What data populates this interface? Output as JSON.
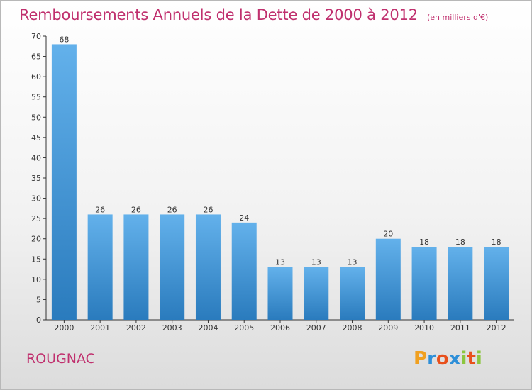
{
  "header": {
    "title": "Remboursements Annuels de la Dette de 2000 à 2012",
    "subtitle": "(en milliers d'€)"
  },
  "footer": {
    "place": "ROUGNAC",
    "logo": "Proxiti"
  },
  "colors": {
    "bar_top": "#63b1eb",
    "bar_bottom": "#2a7bbd",
    "accent": "#c0306e"
  },
  "chart_data": {
    "type": "bar",
    "title": "Remboursements Annuels de la Dette de 2000 à 2012",
    "subtitle": "(en milliers d'€)",
    "categories": [
      "2000",
      "2001",
      "2002",
      "2003",
      "2004",
      "2005",
      "2006",
      "2007",
      "2008",
      "2009",
      "2010",
      "2011",
      "2012"
    ],
    "values": [
      68,
      26,
      26,
      26,
      26,
      24,
      13,
      13,
      13,
      20,
      18,
      18,
      18
    ],
    "value_labels": [
      "68",
      "26",
      "26",
      "26",
      "26",
      "24",
      "13",
      "13",
      "13",
      "20",
      "18",
      "18",
      "18"
    ],
    "yticks": [
      "0",
      "5",
      "10",
      "15",
      "20",
      "25",
      "30",
      "35",
      "40",
      "45",
      "50",
      "55",
      "60",
      "65",
      "70"
    ],
    "ylim": [
      0,
      70
    ],
    "xlabel": "",
    "ylabel": "",
    "grid": false,
    "legend": "none"
  }
}
